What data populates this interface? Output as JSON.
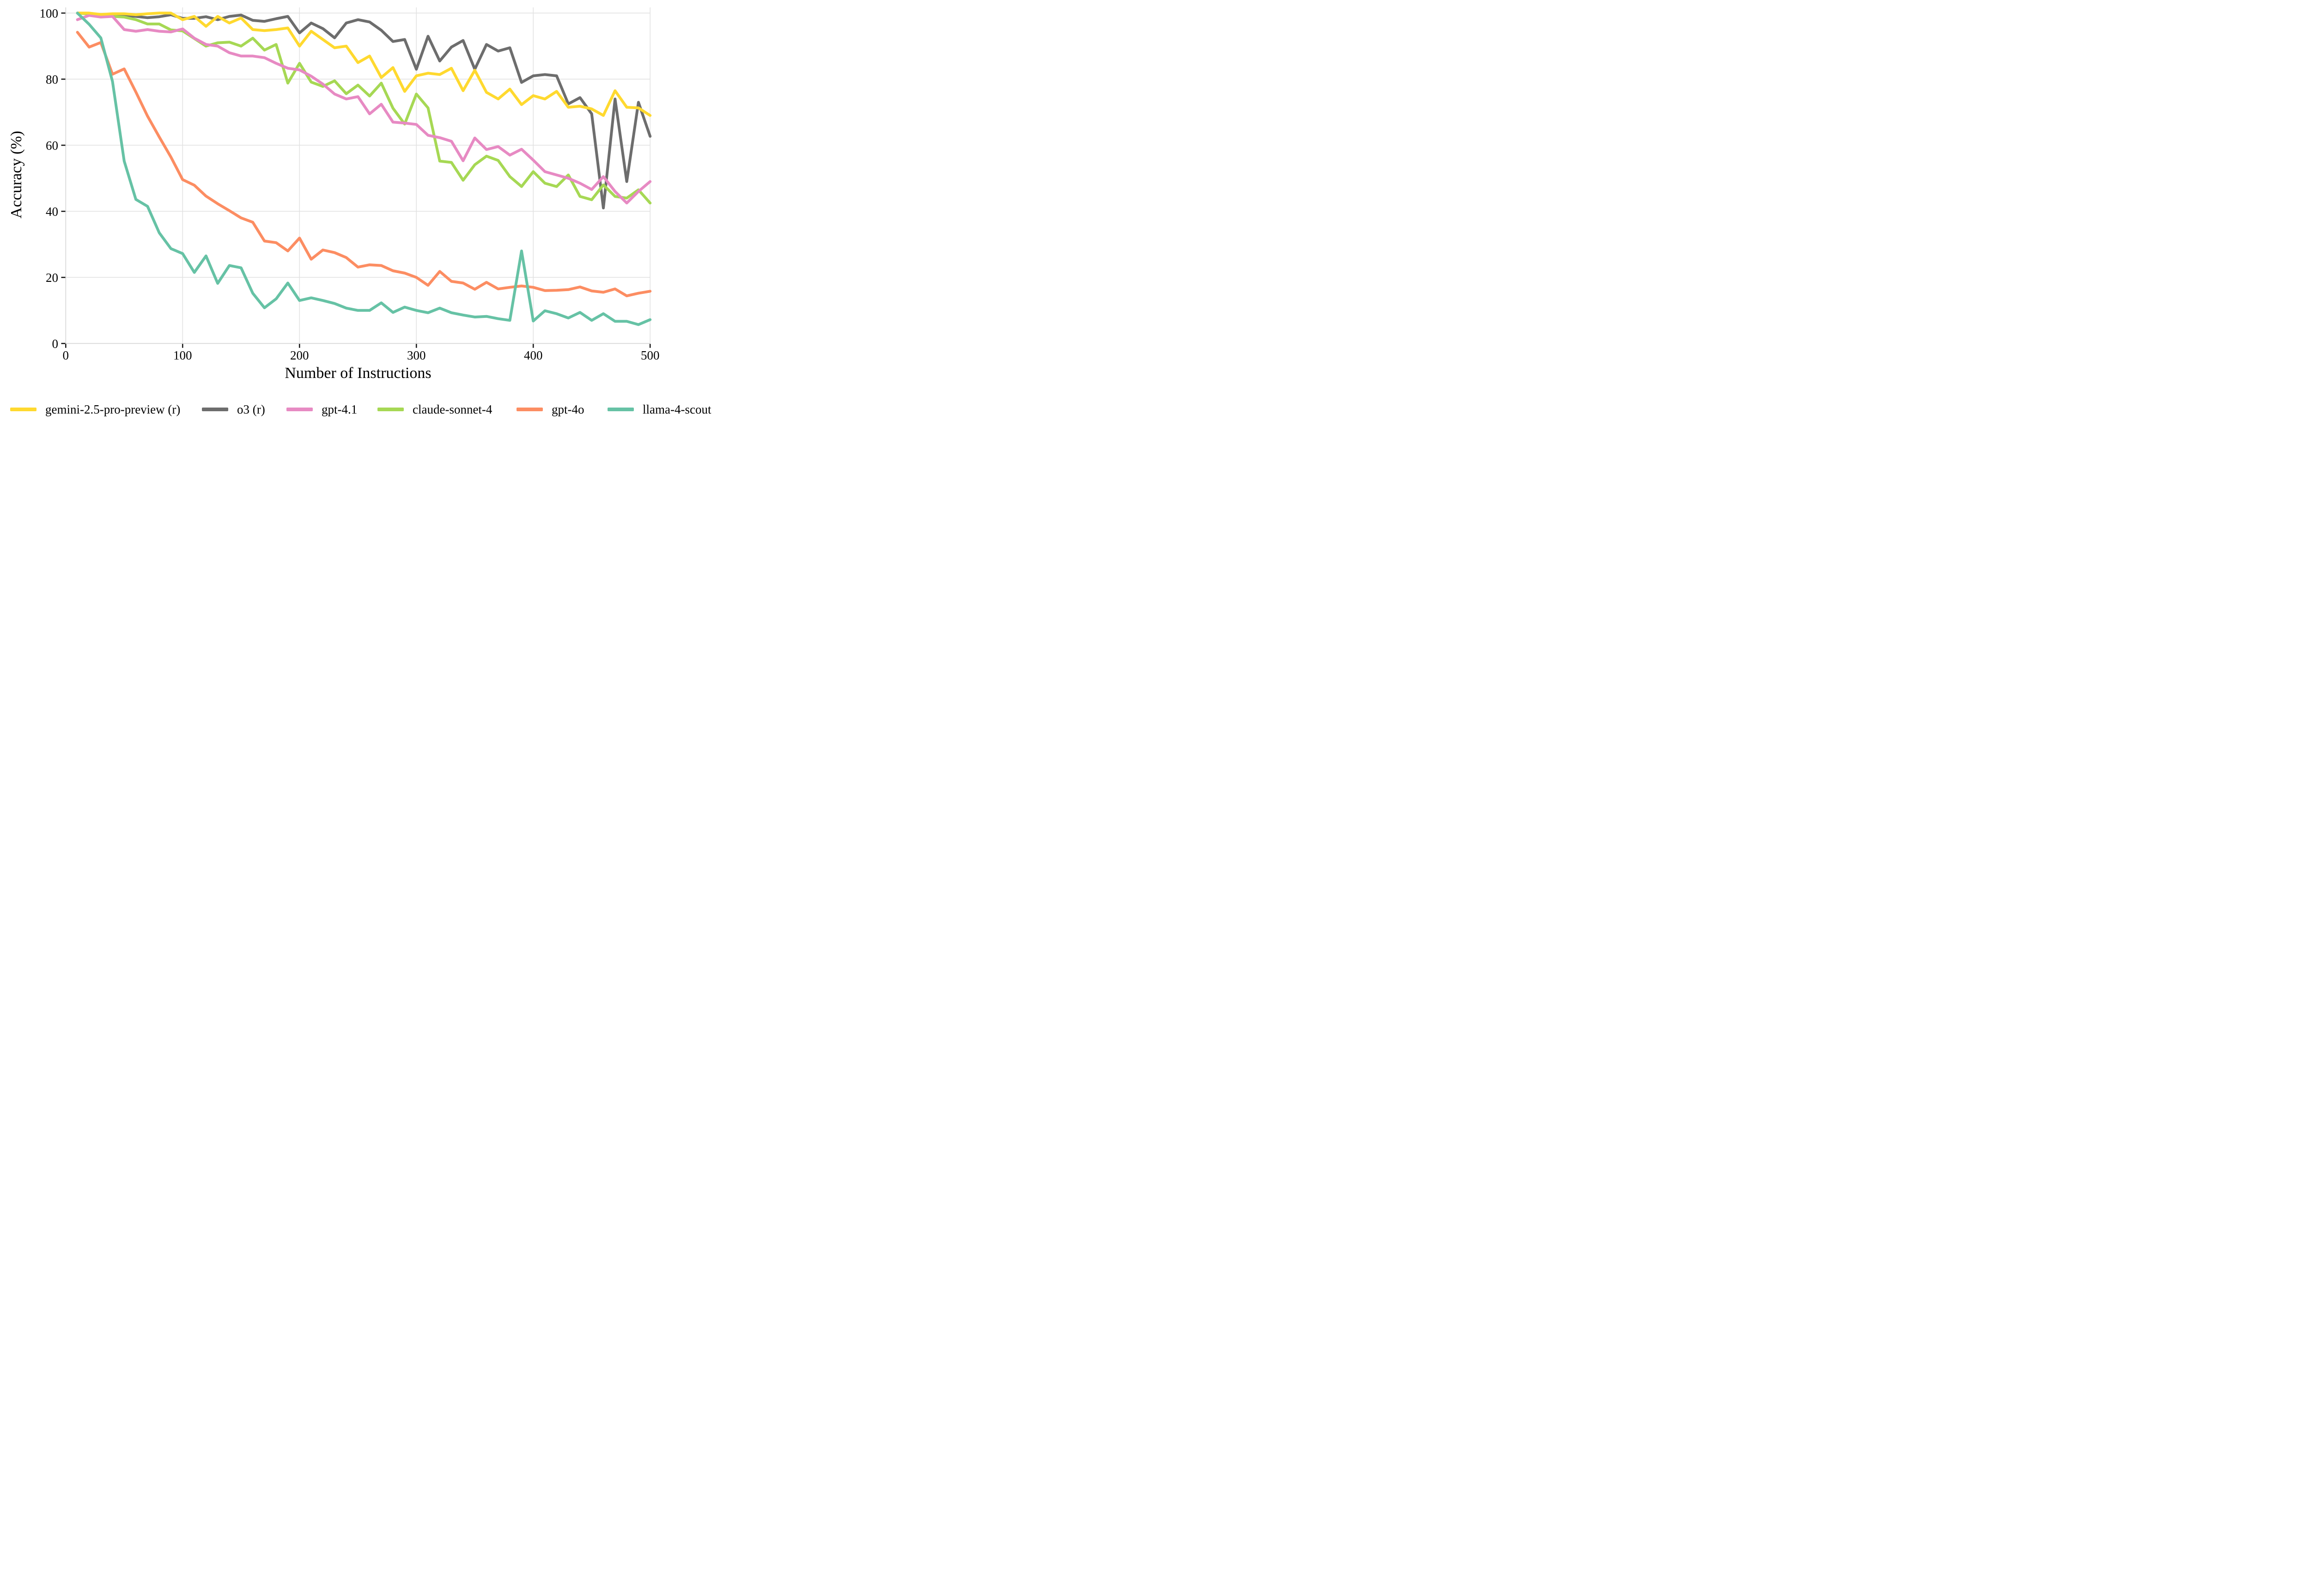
{
  "figure": {
    "kind": "line-chart-figure",
    "background": "#ffffff",
    "grid_color": "#e2e2e2",
    "spine_color": "#d9d9d9",
    "tick_color": "#1a1a1a"
  },
  "x_axis": {
    "title": "Number of Instructions",
    "tick_labels": [
      "0",
      "100",
      "200",
      "300",
      "400",
      "500"
    ],
    "tick_values": [
      0,
      100,
      200,
      300,
      400,
      500
    ],
    "range": [
      0,
      500
    ]
  },
  "y_axis": {
    "title": "Accuracy (%)",
    "tick_labels": [
      "0",
      "20",
      "40",
      "60",
      "80",
      "100"
    ],
    "tick_values": [
      0,
      20,
      40,
      60,
      80,
      100
    ],
    "range": [
      0,
      102
    ]
  },
  "chart_data": {
    "type": "line",
    "title": "",
    "grid": true,
    "legend_position": "bottom",
    "xlabel": "Number of Instructions",
    "ylabel": "Accuracy (%)",
    "xlim": [
      0,
      500
    ],
    "ylim": [
      0,
      102
    ],
    "x": [
      10,
      20,
      30,
      40,
      50,
      60,
      70,
      80,
      90,
      100,
      110,
      120,
      130,
      140,
      150,
      160,
      170,
      180,
      190,
      200,
      210,
      220,
      230,
      240,
      250,
      260,
      270,
      280,
      290,
      300,
      310,
      320,
      330,
      340,
      350,
      360,
      370,
      380,
      390,
      400,
      410,
      420,
      430,
      440,
      450,
      460,
      470,
      480,
      490,
      500
    ],
    "series": [
      {
        "name": "gemini-2.5-pro-preview (r)",
        "color": "#FFD92F",
        "values": [
          100,
          100,
          99.6,
          99.8,
          99.8,
          99.5,
          99.8,
          100,
          100,
          98,
          99,
          96,
          99,
          97,
          98.5,
          95,
          94.7,
          95,
          95.5,
          90,
          94.5,
          92,
          89.5,
          90,
          85,
          87,
          80.5,
          83.5,
          76.3,
          81,
          81.8,
          81.4,
          83.3,
          76.5,
          82.7,
          76,
          74,
          77,
          72.3,
          75,
          74,
          76.3,
          71.5,
          71.8,
          71,
          69,
          76.5,
          71.5,
          71.3,
          69
        ]
      },
      {
        "name": "o3 (r)",
        "color": "#6d6d6d",
        "values": [
          100,
          99.8,
          99.3,
          99.2,
          99.2,
          99,
          98.6,
          98.9,
          99.5,
          98.4,
          98.4,
          98.9,
          98,
          99,
          99.4,
          97.8,
          97.5,
          98.3,
          99,
          94,
          97,
          95.3,
          92.5,
          97,
          98,
          97.3,
          94.8,
          91.4,
          92,
          83,
          93,
          85.5,
          89.7,
          91.7,
          83,
          90.5,
          88.5,
          89.5,
          79,
          81,
          81.4,
          81,
          72.5,
          74.4,
          69.5,
          41,
          74,
          49,
          73,
          62.7
        ]
      },
      {
        "name": "gpt-4.1",
        "color": "#E78AC3",
        "values": [
          98,
          99.3,
          98.8,
          99,
          95,
          94.5,
          95,
          94.5,
          94.3,
          95.2,
          92.4,
          90.5,
          90,
          88,
          87,
          87,
          86.5,
          84.8,
          83.3,
          82.8,
          80.9,
          78.5,
          75.5,
          74,
          74.7,
          69.5,
          72.4,
          67,
          66.7,
          66.3,
          63,
          62.3,
          61.2,
          55.3,
          62.2,
          58.7,
          59.6,
          57,
          58.8,
          55.5,
          52,
          51,
          50,
          48.5,
          46.6,
          50.5,
          46,
          42.5,
          46,
          49
        ]
      },
      {
        "name": "claude-sonnet-4",
        "color": "#A6D854",
        "values": [
          100,
          99.7,
          99.4,
          99,
          98.8,
          98,
          96.7,
          96.7,
          94.9,
          94.6,
          92.3,
          90,
          91,
          91.2,
          90,
          92.4,
          88.8,
          90.5,
          78.8,
          84.8,
          79.1,
          77.8,
          79.5,
          75.6,
          78.2,
          74.9,
          78.8,
          71.2,
          66.4,
          75.5,
          71.3,
          55.2,
          54.8,
          49.4,
          54.1,
          56.7,
          55.4,
          50.5,
          47.5,
          52,
          48.5,
          47.5,
          51,
          44.5,
          43.5,
          48,
          44.5,
          44,
          46.5,
          42.5
        ]
      },
      {
        "name": "gpt-4o",
        "color": "#FC8D62",
        "values": [
          94.2,
          89.7,
          91.1,
          81.5,
          83.1,
          76.1,
          68.8,
          62.5,
          56.4,
          49.6,
          47.9,
          44.6,
          42.3,
          40.2,
          38,
          36.7,
          31,
          30.5,
          28,
          31.9,
          25.5,
          28.3,
          27.5,
          26,
          23.1,
          23.8,
          23.6,
          22,
          21.3,
          20,
          17.6,
          21.8,
          18.8,
          18.3,
          16.4,
          18.5,
          16.5,
          17,
          17.4,
          17,
          16,
          16.1,
          16.3,
          17.1,
          15.9,
          15.5,
          16.5,
          14.4,
          15.2,
          15.8
        ]
      },
      {
        "name": "llama-4-scout",
        "color": "#66C2A5",
        "values": [
          100,
          96.6,
          92.5,
          79.3,
          55.2,
          43.6,
          41.5,
          33.5,
          28.7,
          27.2,
          21.5,
          26.5,
          18.2,
          23.6,
          22.9,
          15.2,
          10.8,
          13.5,
          18.3,
          13,
          13.8,
          13,
          12.1,
          10.7,
          10,
          10,
          12.3,
          9.4,
          11,
          10,
          9.3,
          10.7,
          9.3,
          8.6,
          8,
          8.2,
          7.5,
          7,
          28,
          6.8,
          9.9,
          9,
          7.7,
          9.4,
          7,
          9,
          6.7,
          6.7,
          5.7,
          7.2
        ]
      }
    ]
  }
}
